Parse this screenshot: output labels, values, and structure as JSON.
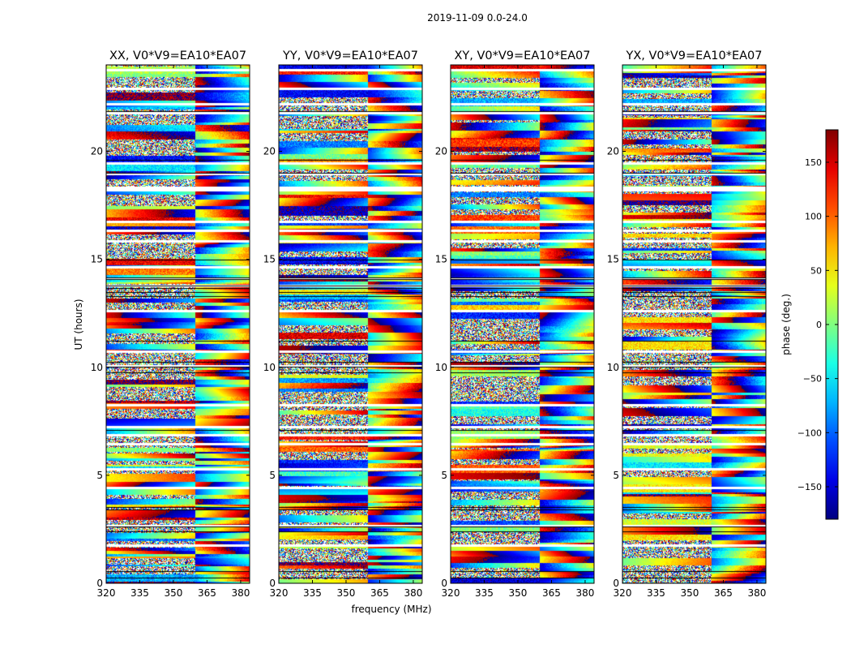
{
  "chart_data": {
    "type": "heatmap",
    "suptitle": "2019-11-09 0.0-24.0",
    "panels": [
      {
        "title": "XX, V0*V9=EA10*EA07"
      },
      {
        "title": "YY, V0*V9=EA10*EA07"
      },
      {
        "title": "XY, V0*V9=EA10*EA07"
      },
      {
        "title": "YX, V0*V9=EA10*EA07"
      }
    ],
    "xlabel": "frequency (MHz)",
    "ylabel": "UT (hours)",
    "xlim": [
      320,
      384
    ],
    "ylim": [
      0,
      24
    ],
    "xticks": [
      320,
      335,
      350,
      365,
      380
    ],
    "xtick_labels": [
      "320",
      "335",
      "350",
      "365",
      "380"
    ],
    "yticks": [
      0,
      5,
      10,
      15,
      20
    ],
    "ytick_labels": [
      "0",
      "5",
      "10",
      "15",
      "20"
    ],
    "colorbar": {
      "label": "phase (deg.)",
      "range": [
        -180,
        180
      ],
      "ticks": [
        150,
        100,
        50,
        0,
        -50,
        -100,
        -150
      ],
      "tick_labels": [
        "150",
        "100",
        "50",
        "0",
        "−50",
        "−100",
        "−150"
      ],
      "colormap": "jet",
      "colors": [
        "#00007f",
        "#0000ff",
        "#007fff",
        "#00ffff",
        "#7fff7f",
        "#ffff00",
        "#ff7f00",
        "#ff0000",
        "#7f0000"
      ]
    }
  }
}
